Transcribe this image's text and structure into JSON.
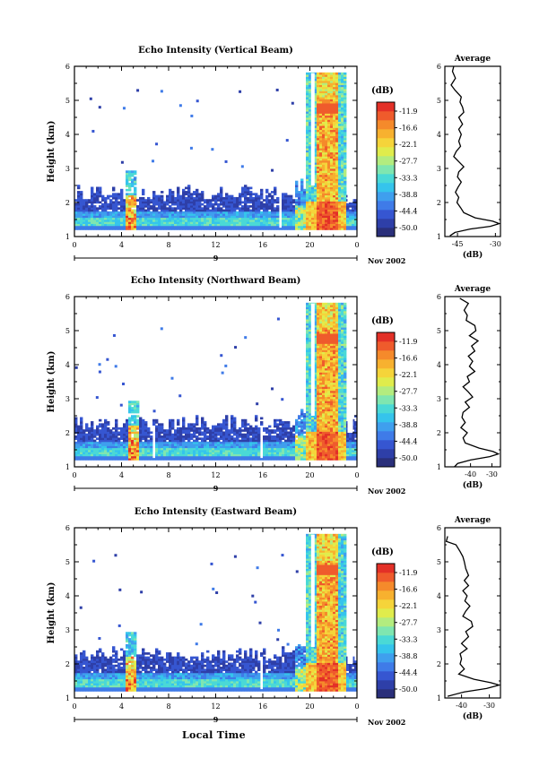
{
  "figure": {
    "x_axis_label": "Local Time"
  },
  "colorbar": {
    "unit": "(dB)",
    "tick_labels": [
      "-11.9",
      "-16.6",
      "-22.1",
      "-27.7",
      "-33.3",
      "-38.8",
      "-44.4",
      "-50.0"
    ],
    "colors": [
      "#2a2f7a",
      "#2e3fa8",
      "#3656d1",
      "#3f7be8",
      "#3f9fee",
      "#35c4ec",
      "#4ad9d6",
      "#7fe6b0",
      "#b3ec7f",
      "#e0ec4c",
      "#f5d43a",
      "#f7b12f",
      "#f58a2b",
      "#ef5b2c",
      "#e33027"
    ]
  },
  "chart_data": [
    {
      "type": "heatmap",
      "title": "Echo Intensity (Vertical Beam)",
      "ylabel": "Height (km)",
      "xlim": [
        0,
        24
      ],
      "ylim": [
        1,
        6
      ],
      "x_ticks": [
        "0",
        "4",
        "8",
        "12",
        "16",
        "20",
        "0"
      ],
      "y_ticks": [
        "1",
        "2",
        "3",
        "4",
        "5",
        "6"
      ],
      "date_day": "9",
      "date_label": "Nov 2002",
      "stripe_hours": [
        17.4
      ],
      "high_hours": [
        4.9
      ],
      "average": {
        "title": "Average",
        "xlabel": "(dB)",
        "xlim": [
          -50,
          -28
        ],
        "x_ticks": [
          {
            "value": -45,
            "label": "-45"
          },
          {
            "value": -30,
            "label": "-30"
          }
        ],
        "y_ticks": [
          "1",
          "2",
          "3",
          "4",
          "5",
          "6"
        ],
        "profile": [
          [
            -46.5,
            6.0
          ],
          [
            -47.0,
            5.85
          ],
          [
            -45.8,
            5.65
          ],
          [
            -47.5,
            5.45
          ],
          [
            -46.0,
            5.3
          ],
          [
            -43.5,
            5.1
          ],
          [
            -44.0,
            4.95
          ],
          [
            -43.0,
            4.8
          ],
          [
            -42.5,
            4.65
          ],
          [
            -44.5,
            4.5
          ],
          [
            -43.0,
            4.3
          ],
          [
            -44.5,
            4.15
          ],
          [
            -43.5,
            4.0
          ],
          [
            -44.5,
            3.8
          ],
          [
            -43.8,
            3.65
          ],
          [
            -45.5,
            3.5
          ],
          [
            -46.5,
            3.35
          ],
          [
            -44.5,
            3.2
          ],
          [
            -42.5,
            3.05
          ],
          [
            -44.5,
            2.9
          ],
          [
            -45.0,
            2.75
          ],
          [
            -43.5,
            2.6
          ],
          [
            -44.8,
            2.45
          ],
          [
            -45.8,
            2.3
          ],
          [
            -44.5,
            2.15
          ],
          [
            -45.2,
            2.0
          ],
          [
            -43.8,
            1.85
          ],
          [
            -42.5,
            1.7
          ],
          [
            -38.0,
            1.55
          ],
          [
            -31.0,
            1.45
          ],
          [
            -28.5,
            1.38
          ],
          [
            -32.0,
            1.3
          ],
          [
            -40.0,
            1.22
          ],
          [
            -46.0,
            1.12
          ],
          [
            -48.0,
            1.02
          ]
        ]
      }
    },
    {
      "type": "heatmap",
      "title": "Echo Intensity (Northward Beam)",
      "ylabel": "Height (km)",
      "xlim": [
        0,
        24
      ],
      "ylim": [
        1,
        6
      ],
      "x_ticks": [
        "0",
        "4",
        "8",
        "12",
        "16",
        "20",
        "0"
      ],
      "y_ticks": [
        "1",
        "2",
        "3",
        "4",
        "5",
        "6"
      ],
      "date_day": "9",
      "date_label": "Nov 2002",
      "stripe_hours": [
        6.7,
        15.9
      ],
      "high_hours": [
        5.0
      ],
      "average": {
        "title": "Average",
        "xlabel": "(dB)",
        "xlim": [
          -52,
          -26
        ],
        "x_ticks": [
          {
            "value": -40,
            "label": "-40"
          },
          {
            "value": -30,
            "label": "-30"
          }
        ],
        "y_ticks": [
          "1",
          "2",
          "3",
          "4",
          "5",
          "6"
        ],
        "profile": [
          [
            -45.0,
            5.95
          ],
          [
            -41.0,
            5.8
          ],
          [
            -43.0,
            5.6
          ],
          [
            -41.5,
            5.45
          ],
          [
            -42.0,
            5.3
          ],
          [
            -38.0,
            5.15
          ],
          [
            -37.5,
            5.0
          ],
          [
            -40.5,
            4.85
          ],
          [
            -36.5,
            4.7
          ],
          [
            -39.5,
            4.55
          ],
          [
            -38.0,
            4.4
          ],
          [
            -41.0,
            4.25
          ],
          [
            -39.0,
            4.1
          ],
          [
            -40.5,
            3.95
          ],
          [
            -38.0,
            3.8
          ],
          [
            -41.5,
            3.65
          ],
          [
            -40.5,
            3.5
          ],
          [
            -43.5,
            3.35
          ],
          [
            -41.0,
            3.2
          ],
          [
            -39.0,
            3.05
          ],
          [
            -42.5,
            2.9
          ],
          [
            -40.5,
            2.75
          ],
          [
            -43.5,
            2.6
          ],
          [
            -44.0,
            2.45
          ],
          [
            -42.5,
            2.3
          ],
          [
            -44.5,
            2.15
          ],
          [
            -41.5,
            2.0
          ],
          [
            -43.5,
            1.85
          ],
          [
            -42.5,
            1.7
          ],
          [
            -36.0,
            1.55
          ],
          [
            -29.5,
            1.45
          ],
          [
            -27.0,
            1.38
          ],
          [
            -31.0,
            1.3
          ],
          [
            -40.0,
            1.2
          ],
          [
            -46.0,
            1.1
          ],
          [
            -47.5,
            1.0
          ]
        ]
      }
    },
    {
      "type": "heatmap",
      "title": "Echo Intensity (Eastward Beam)",
      "ylabel": "Height (km)",
      "xlim": [
        0,
        24
      ],
      "ylim": [
        1,
        6
      ],
      "x_ticks": [
        "0",
        "4",
        "8",
        "12",
        "16",
        "20",
        "0"
      ],
      "y_ticks": [
        "1",
        "2",
        "3",
        "4",
        "5",
        "6"
      ],
      "date_day": "9",
      "date_label": "Nov 2002",
      "stripe_hours": [
        15.9
      ],
      "high_hours": [
        4.9
      ],
      "average": {
        "title": "Average",
        "xlabel": "(dB)",
        "xlim": [
          -46,
          -26
        ],
        "x_ticks": [
          {
            "value": -40,
            "label": "-40"
          },
          {
            "value": -30,
            "label": "-30"
          }
        ],
        "y_ticks": [
          "1",
          "2",
          "3",
          "4",
          "5",
          "6"
        ],
        "profile": [
          [
            -45.0,
            5.75
          ],
          [
            -45.5,
            5.6
          ],
          [
            -42.0,
            5.5
          ],
          [
            -40.5,
            5.3
          ],
          [
            -39.5,
            5.15
          ],
          [
            -39.0,
            5.0
          ],
          [
            -38.5,
            4.8
          ],
          [
            -37.5,
            4.6
          ],
          [
            -39.0,
            4.45
          ],
          [
            -37.5,
            4.3
          ],
          [
            -39.5,
            4.15
          ],
          [
            -38.0,
            4.0
          ],
          [
            -38.8,
            3.85
          ],
          [
            -37.0,
            3.7
          ],
          [
            -38.5,
            3.55
          ],
          [
            -39.5,
            3.4
          ],
          [
            -36.5,
            3.25
          ],
          [
            -36.0,
            3.1
          ],
          [
            -38.5,
            2.95
          ],
          [
            -37.5,
            2.8
          ],
          [
            -40.0,
            2.6
          ],
          [
            -38.0,
            2.45
          ],
          [
            -40.5,
            2.3
          ],
          [
            -40.0,
            2.15
          ],
          [
            -40.5,
            2.0
          ],
          [
            -39.0,
            1.85
          ],
          [
            -41.0,
            1.7
          ],
          [
            -35.5,
            1.55
          ],
          [
            -29.5,
            1.45
          ],
          [
            -26.5,
            1.38
          ],
          [
            -31.0,
            1.28
          ],
          [
            -39.0,
            1.18
          ],
          [
            -45.0,
            1.05
          ]
        ]
      }
    }
  ]
}
